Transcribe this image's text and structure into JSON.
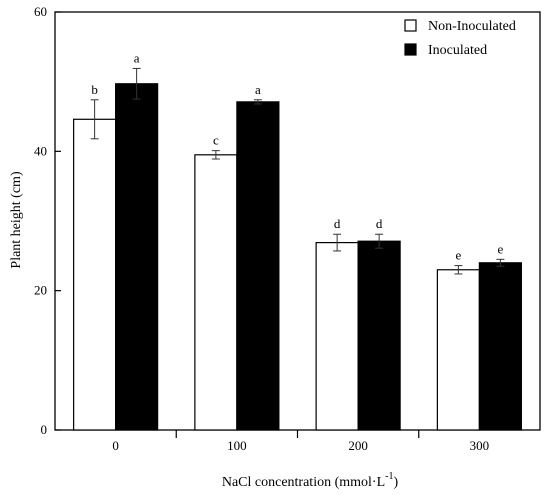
{
  "chart_data": {
    "type": "bar",
    "title": "",
    "xlabel": "NaCl concentration (mmol·L",
    "xlabel_sup": "-1",
    "xlabel_close": ")",
    "ylabel": "Plant height (cm)",
    "ylim": [
      0,
      60
    ],
    "yticks": [
      "0",
      "20",
      "40",
      "60"
    ],
    "categories": [
      "0",
      "100",
      "200",
      "300"
    ],
    "legend_position": "top-right",
    "grid": false,
    "series": [
      {
        "name": "Non-Inoculated",
        "fill": "#ffffff",
        "values": [
          44.6,
          39.5,
          26.9,
          23.0
        ],
        "errors": [
          2.8,
          0.6,
          1.2,
          0.6
        ],
        "letters": [
          "b",
          "c",
          "d",
          "e"
        ]
      },
      {
        "name": "Inoculated",
        "fill": "#000000",
        "values": [
          49.7,
          47.1,
          27.1,
          24.0
        ],
        "errors": [
          2.2,
          0.3,
          1.0,
          0.5
        ],
        "letters": [
          "a",
          "a",
          "d",
          "e"
        ]
      }
    ]
  }
}
